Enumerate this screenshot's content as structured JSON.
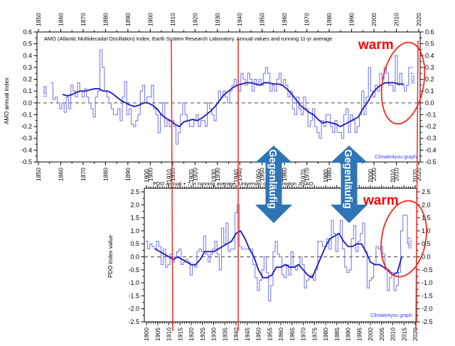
{
  "annotations": {
    "warm_label": "warm",
    "counter_arrow_label": "Gegenläufig"
  },
  "colors": {
    "annual_line": "#7b7de8",
    "running_mean": "#2222bd",
    "axis": "#000000",
    "zero_line": "#444444",
    "annotation_red": "#f8281e",
    "warm_text": "#ff0000",
    "arrow_blue": "#2e75b5",
    "arrow_text": "#ffffff",
    "watermark_blue": "#3a3aff",
    "year_note_blue": "#5555dd"
  },
  "chart_data": [
    {
      "type": "line",
      "title": "AMO (Atlantic Multidecadal Oscillation) Index; Earth System Research Laboratory. Annual values and running 11-yr average",
      "ylabel": "AMO annual index",
      "watermark": "Climate4you graph",
      "first_point_label": "1856",
      "last_point_label": "2017",
      "xlim": [
        1850,
        2020
      ],
      "ylim": [
        -0.5,
        0.6
      ],
      "x_tick_minor": 5,
      "x_tick_major": 10,
      "y_tick_minor": 0.05,
      "y_tick_major": 0.1,
      "zero_line_dashed": true,
      "series": [
        {
          "name": "Annual values",
          "start_year": 1856,
          "step": 1,
          "values": [
            0.17,
            0.03,
            0.05,
            0.0,
            -0.05,
            0.0,
            -0.08,
            0.05,
            -0.05,
            0.15,
            0.1,
            0.05,
            0.17,
            0.1,
            0.05,
            0.12,
            0.05,
            0.0,
            -0.05,
            -0.12,
            0.05,
            0.1,
            0.45,
            0.3,
            0.1,
            0.05,
            0.0,
            -0.05,
            -0.1,
            -0.1,
            -0.05,
            -0.15,
            0.05,
            0.18,
            -0.1,
            -0.05,
            -0.18,
            -0.2,
            -0.15,
            -0.1,
            0.1,
            0.15,
            0.0,
            0.05,
            0.05,
            0.15,
            -0.05,
            -0.1,
            -0.25,
            -0.1,
            0.0,
            -0.2,
            -0.15,
            -0.2,
            -0.15,
            -0.2,
            -0.35,
            -0.25,
            -0.1,
            0.0,
            -0.1,
            -0.15,
            -0.2,
            -0.2,
            -0.15,
            -0.1,
            -0.2,
            -0.15,
            -0.15,
            -0.2,
            0.0,
            -0.05,
            -0.1,
            -0.15,
            0.0,
            0.1,
            0.05,
            0.1,
            0.05,
            0.0,
            0.1,
            0.15,
            0.2,
            0.15,
            0.1,
            0.25,
            0.2,
            0.15,
            0.25,
            0.2,
            0.1,
            0.2,
            0.15,
            0.2,
            0.15,
            0.25,
            0.3,
            0.25,
            0.1,
            0.15,
            0.1,
            0.2,
            0.25,
            0.15,
            0.2,
            0.15,
            0.05,
            0.1,
            -0.05,
            -0.1,
            0.05,
            -0.05,
            -0.1,
            0.05,
            -0.05,
            -0.2,
            -0.15,
            -0.05,
            -0.2,
            -0.25,
            -0.3,
            -0.15,
            -0.2,
            -0.1,
            -0.1,
            -0.2,
            -0.25,
            -0.15,
            -0.25,
            -0.25,
            -0.3,
            -0.1,
            -0.05,
            -0.25,
            -0.1,
            -0.15,
            -0.25,
            -0.2,
            -0.1,
            0.1,
            -0.1,
            0.05,
            0.3,
            0.1,
            0.05,
            0.15,
            0.1,
            0.25,
            0.2,
            0.3,
            0.25,
            0.15,
            0.15,
            0.1,
            0.4,
            0.15,
            0.25,
            0.15,
            0.1,
            0.15,
            0.3,
            0.3
          ]
        },
        {
          "name": "Running 11-yr average",
          "start_year": 1861,
          "step": 2,
          "values": [
            0.07,
            0.06,
            0.07,
            0.09,
            0.1,
            0.1,
            0.11,
            0.12,
            0.12,
            0.1,
            0.1,
            0.08,
            0.05,
            0.02,
            0.0,
            -0.02,
            -0.03,
            -0.02,
            0.0,
            0.0,
            -0.02,
            -0.05,
            -0.1,
            -0.13,
            -0.15,
            -0.18,
            -0.2,
            -0.16,
            -0.15,
            -0.14,
            -0.15,
            -0.13,
            -0.1,
            -0.07,
            -0.03,
            0.02,
            0.07,
            0.1,
            0.13,
            0.15,
            0.16,
            0.17,
            0.17,
            0.16,
            0.15,
            0.17,
            0.17,
            0.16,
            0.16,
            0.15,
            0.12,
            0.08,
            0.03,
            -0.02,
            -0.05,
            -0.08,
            -0.1,
            -0.14,
            -0.17,
            -0.16,
            -0.17,
            -0.18,
            -0.2,
            -0.18,
            -0.16,
            -0.14,
            -0.12,
            -0.05,
            0.0,
            0.07,
            0.12,
            0.15,
            0.17,
            0.17,
            0.17,
            0.16,
            0.16
          ]
        }
      ]
    },
    {
      "type": "line",
      "title": "PDO annual + 7 yr running average; University of Washington JISAO",
      "ylabel": "PDO index value",
      "watermark": "Climate4you graph",
      "first_point_label": "",
      "last_point_label": "2017",
      "xlim": [
        1900,
        2020
      ],
      "ylim": [
        -2.5,
        2.5
      ],
      "x_tick_minor": 1,
      "x_tick_major": 5,
      "y_tick_minor": 0.25,
      "y_tick_major": 0.5,
      "zero_line_dashed": true,
      "series": [
        {
          "name": "PDO annual",
          "start_year": 1900,
          "step": 1,
          "values": [
            0.6,
            0.3,
            0.5,
            0.4,
            0.3,
            0.6,
            0.4,
            -0.3,
            0.3,
            -0.4,
            -0.3,
            0.1,
            -0.2,
            0.0,
            0.2,
            0.3,
            -0.3,
            -0.2,
            -0.1,
            -0.2,
            -0.7,
            -0.3,
            -0.4,
            0.2,
            0.3,
            0.2,
            0.8,
            0.1,
            -0.2,
            0.1,
            0.3,
            0.6,
            0.1,
            -0.5,
            1.1,
            0.5,
            1.3,
            0.2,
            0.3,
            0.3,
            1.7,
            2.0,
            0.4,
            0.3,
            0.3,
            0.3,
            0.3,
            0.3,
            -0.3,
            -0.8,
            -1.3,
            -0.9,
            -0.5,
            0.0,
            -0.6,
            -1.7,
            -1.1,
            0.2,
            0.6,
            0.1,
            0.0,
            -0.7,
            -0.8,
            -0.3,
            -0.7,
            0.2,
            -0.4,
            -0.5,
            -0.3,
            0.0,
            -0.3,
            -1.2,
            -0.9,
            -0.8,
            -0.7,
            -0.9,
            -0.5,
            0.6,
            0.6,
            0.4,
            0.4,
            0.7,
            0.3,
            1.4,
            0.9,
            0.2,
            0.9,
            1.4,
            0.3,
            -0.4,
            -0.6,
            -0.5,
            0.7,
            1.2,
            0.2,
            0.6,
            0.9,
            1.3,
            0.2,
            -1.2,
            -0.9,
            -0.8,
            -0.3,
            0.4,
            0.3,
            0.4,
            0.1,
            -0.5,
            -1.3,
            -0.8,
            -0.6,
            -1.3,
            -1.1,
            -0.6,
            1.0,
            1.6,
            1.6,
            0.5
          ]
        },
        {
          "name": "7 yr running average",
          "start_year": 1904,
          "step": 2,
          "values": [
            0.3,
            0.2,
            0.1,
            0.0,
            -0.1,
            0.0,
            -0.1,
            -0.2,
            -0.3,
            -0.3,
            -0.1,
            0.2,
            0.2,
            0.2,
            0.3,
            0.4,
            0.5,
            0.6,
            0.9,
            1.0,
            0.7,
            0.3,
            0.0,
            -0.5,
            -0.8,
            -0.8,
            -0.7,
            -0.4,
            -0.4,
            -0.3,
            -0.4,
            -0.4,
            -0.3,
            -0.5,
            -0.7,
            -0.8,
            -0.4,
            0.0,
            0.4,
            0.7,
            0.8,
            0.9,
            0.6,
            0.4,
            0.4,
            0.5,
            0.5,
            0.2,
            -0.2,
            -0.3,
            -0.3,
            -0.4,
            -0.5,
            -0.7,
            -0.6,
            0.0
          ]
        }
      ]
    }
  ]
}
